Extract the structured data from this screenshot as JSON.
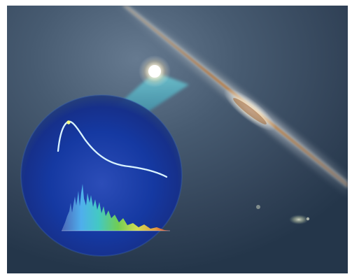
{
  "image": {
    "elements": {
      "sky": "deep-space-background",
      "galaxy": "edge-on-spiral-galaxy",
      "supernova": "bright-stellar-burst",
      "light_cone": "cyan-light-beam",
      "inset": "spectrum-inset-circle",
      "light_curve": "brightness-curve",
      "spectrum": "rainbow-spectrum-graph",
      "small_galaxies": "distant-galaxy-blobs"
    },
    "colors": {
      "sky": "#314257",
      "galaxy_dust": "#b88a52",
      "inset_blue": "#1238a8",
      "beam": "#4ec7d8",
      "curve": "#dff6ff",
      "spectrum_red": "#d92b2f"
    }
  }
}
